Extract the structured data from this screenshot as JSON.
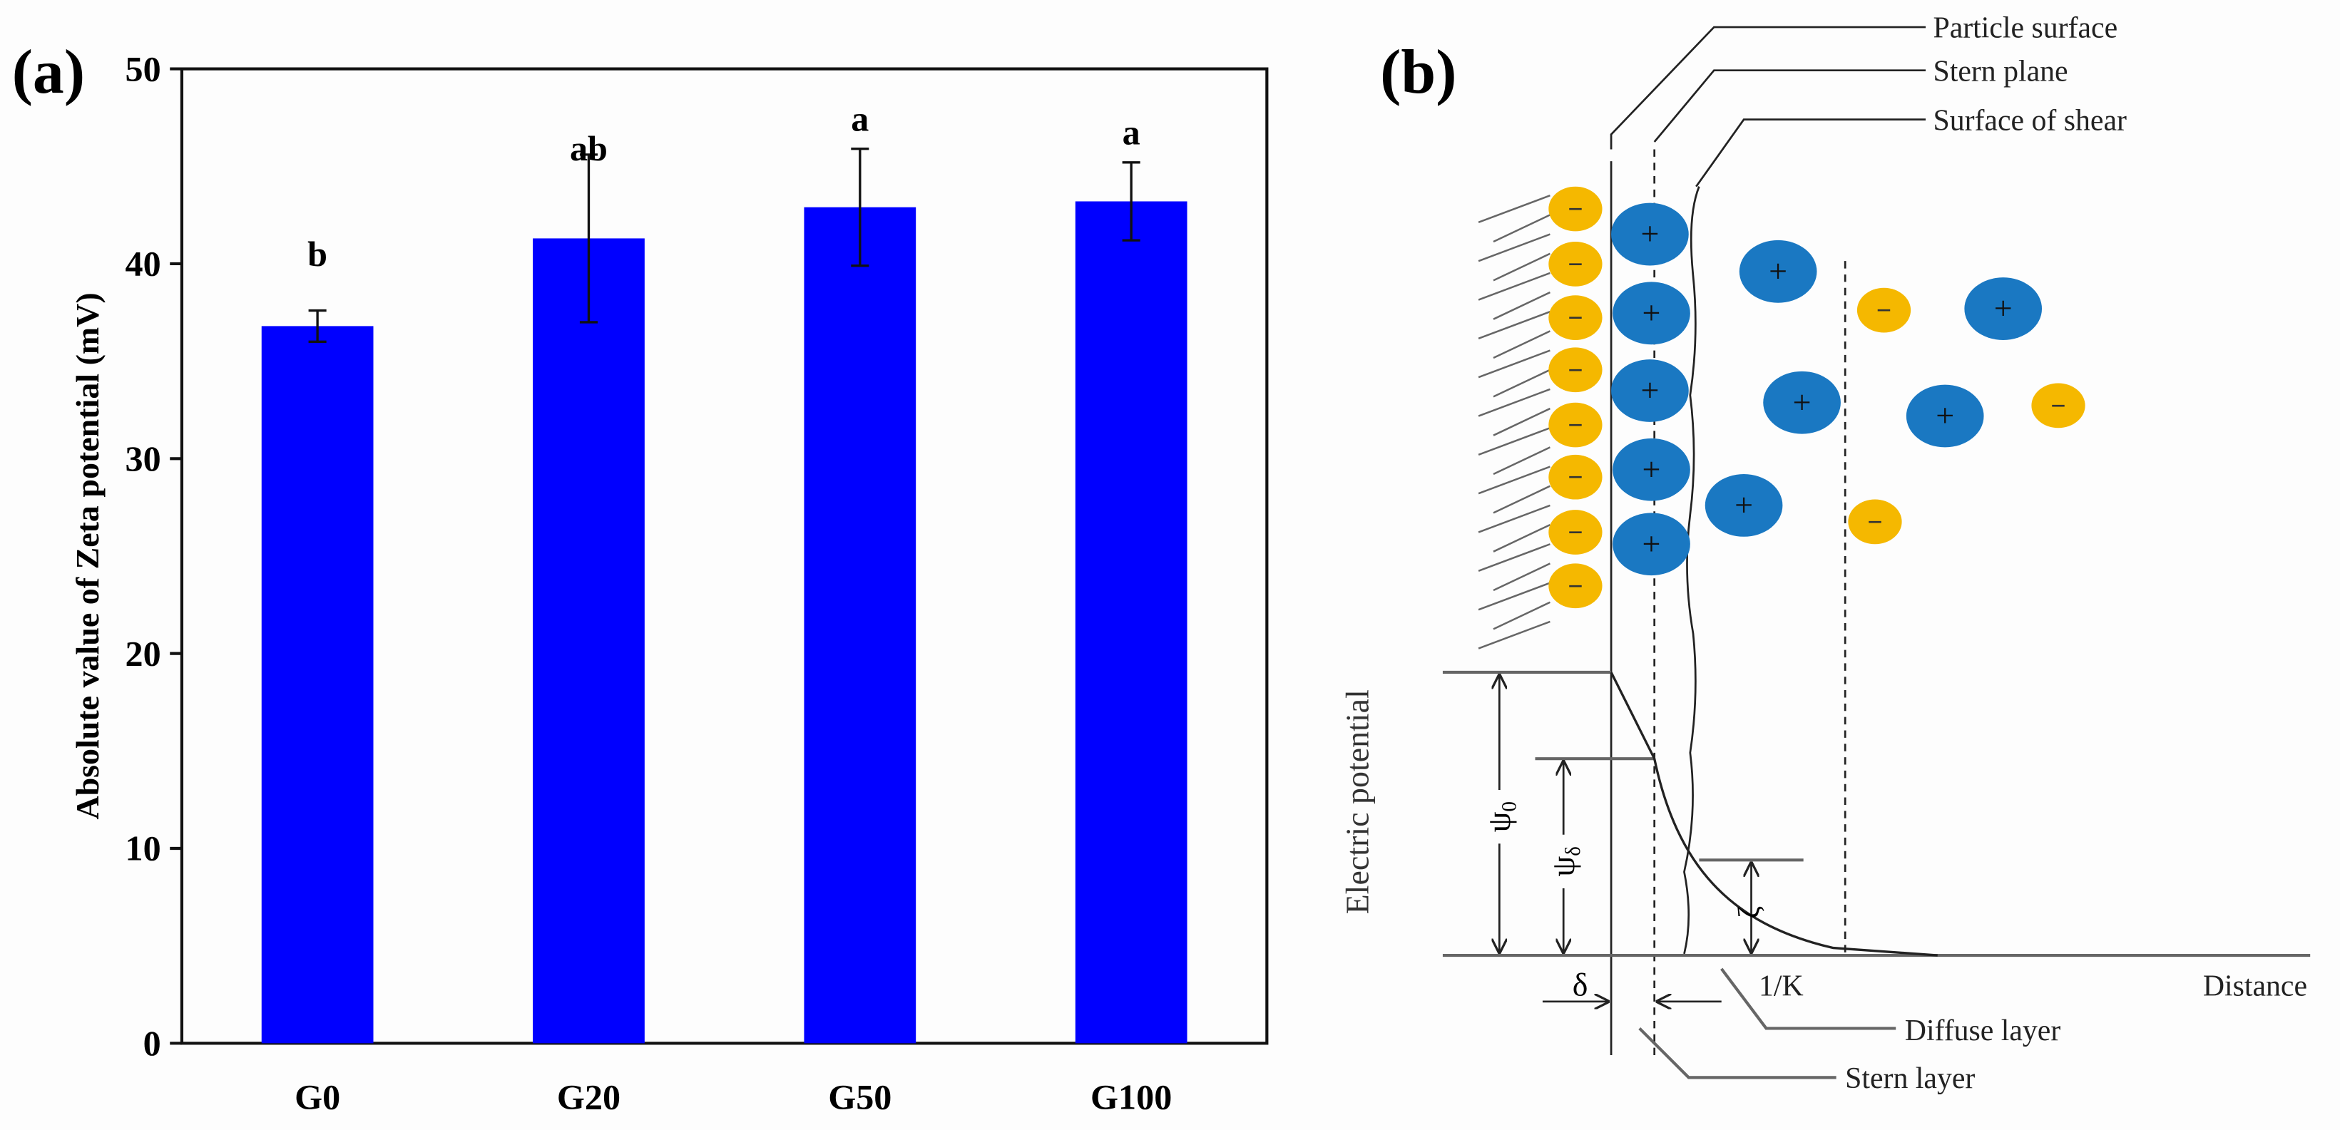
{
  "panel_a": {
    "tag": "(a)"
  },
  "panel_b": {
    "tag": "(b)",
    "labels": {
      "particle_surface": "Particle surface",
      "stern_plane": "Stern plane",
      "surface_of_shear": "Surface of shear",
      "electric_potential": "Electric potential",
      "distance": "Distance",
      "diffuse_layer": "Diffuse layer",
      "stern_layer": "Stern layer",
      "delta": "δ",
      "inv_k": "1/K",
      "psi": "ψ",
      "psi0_sub": "0",
      "psid_sub": "δ",
      "zeta": "ζ",
      "minus": "−",
      "plus": "+"
    },
    "colors": {
      "negative_ion": "#f5b800",
      "positive_ion": "#1a78c2"
    }
  },
  "chart_data": {
    "type": "bar",
    "title": "",
    "xlabel": "",
    "ylabel": "Absolute value of Zeta potential (mV)",
    "categories": [
      "G0",
      "G20",
      "G50",
      "G100"
    ],
    "values": [
      36.8,
      41.3,
      42.9,
      43.2
    ],
    "errors": [
      0.8,
      4.3,
      3.0,
      2.0
    ],
    "significance_letters": [
      "b",
      "ab",
      "a",
      "a"
    ],
    "ylim": [
      0,
      50
    ],
    "yticks": [
      "0",
      "10",
      "20",
      "30",
      "40",
      "50"
    ],
    "grid": false,
    "bar_color": "#0000ff"
  }
}
